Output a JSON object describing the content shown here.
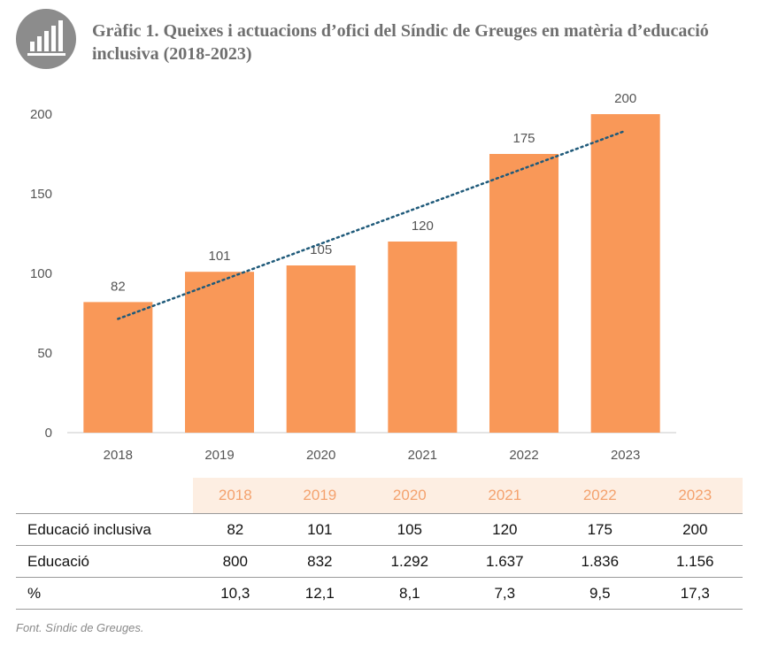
{
  "header": {
    "icon": "bar-chart-icon",
    "title": "Gràfic 1. Queixes i actuacions d’ofici del Síndic de Greuges en matèria d’educació inclusiva (2018-2023)"
  },
  "colors": {
    "bar": "#f99858",
    "trendline": "#1f5a7a",
    "table_header_text": "#f4a26e",
    "table_header_bg": "#fdeee2",
    "icon_circle": "#8c8c8c"
  },
  "chart_data": {
    "type": "bar",
    "categories": [
      "2018",
      "2019",
      "2020",
      "2021",
      "2022",
      "2023"
    ],
    "values": [
      82,
      101,
      105,
      120,
      175,
      200
    ],
    "data_labels": [
      "82",
      "101",
      "105",
      "120",
      "175",
      "200"
    ],
    "y_ticks": [
      0,
      50,
      100,
      150,
      200
    ],
    "ylim": [
      0,
      200
    ],
    "title": "",
    "xlabel": "",
    "ylabel": "",
    "grid": false,
    "legend": "none",
    "trendline": {
      "type": "linear",
      "style": "dotted"
    }
  },
  "table": {
    "columns": [
      "2018",
      "2019",
      "2020",
      "2021",
      "2022",
      "2023"
    ],
    "rows": [
      {
        "label": "Educació inclusiva",
        "values": [
          "82",
          "101",
          "105",
          "120",
          "175",
          "200"
        ]
      },
      {
        "label": "Educació",
        "values": [
          "800",
          "832",
          "1.292",
          "1.637",
          "1.836",
          "1.156"
        ]
      },
      {
        "label": "%",
        "values": [
          "10,3",
          "12,1",
          "8,1",
          "7,3",
          "9,5",
          "17,3"
        ]
      }
    ]
  },
  "source": "Font. Síndic de Greuges."
}
